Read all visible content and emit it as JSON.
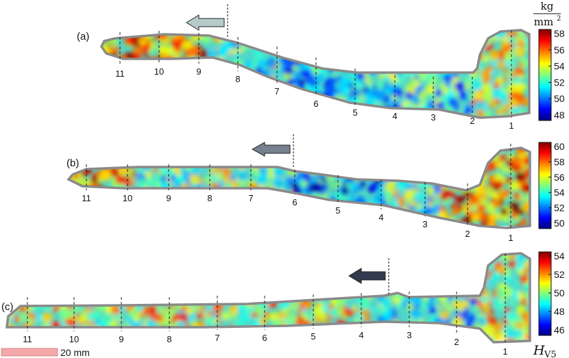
{
  "panels": [
    {
      "label": "(a)",
      "colorbar_ticks": [
        "58",
        "56",
        "54",
        "52",
        "50",
        "48"
      ],
      "positions": [
        "11",
        "10",
        "9",
        "8",
        "7",
        "6",
        "5",
        "4",
        "3",
        "2",
        "1"
      ],
      "arrow_color": "#b4cbc8"
    },
    {
      "label": "(b)",
      "colorbar_ticks": [
        "60",
        "58",
        "56",
        "54",
        "52",
        "50"
      ],
      "positions": [
        "11",
        "10",
        "9",
        "8",
        "7",
        "6",
        "5",
        "4",
        "3",
        "2",
        "1"
      ],
      "arrow_color": "#76808f"
    },
    {
      "label": "(c)",
      "colorbar_ticks": [
        "54",
        "52",
        "50",
        "48",
        "46"
      ],
      "positions": [
        "11",
        "10",
        "9",
        "8",
        "7",
        "6",
        "5",
        "4",
        "3",
        "2",
        "1"
      ],
      "arrow_color": "#333a4d"
    }
  ],
  "units": {
    "numerator": "kg",
    "denominator": "mm",
    "denominator_exponent": "2"
  },
  "quantity": {
    "symbol": "H",
    "subscript": "V5"
  },
  "scale_bar": {
    "label": "20 mm",
    "color": "#f4a9a9"
  },
  "colormap": [
    "#00007f",
    "#0000ff",
    "#007fff",
    "#00ffff",
    "#7fff7f",
    "#ffff00",
    "#ff7f00",
    "#ff0000",
    "#7f0000"
  ]
}
